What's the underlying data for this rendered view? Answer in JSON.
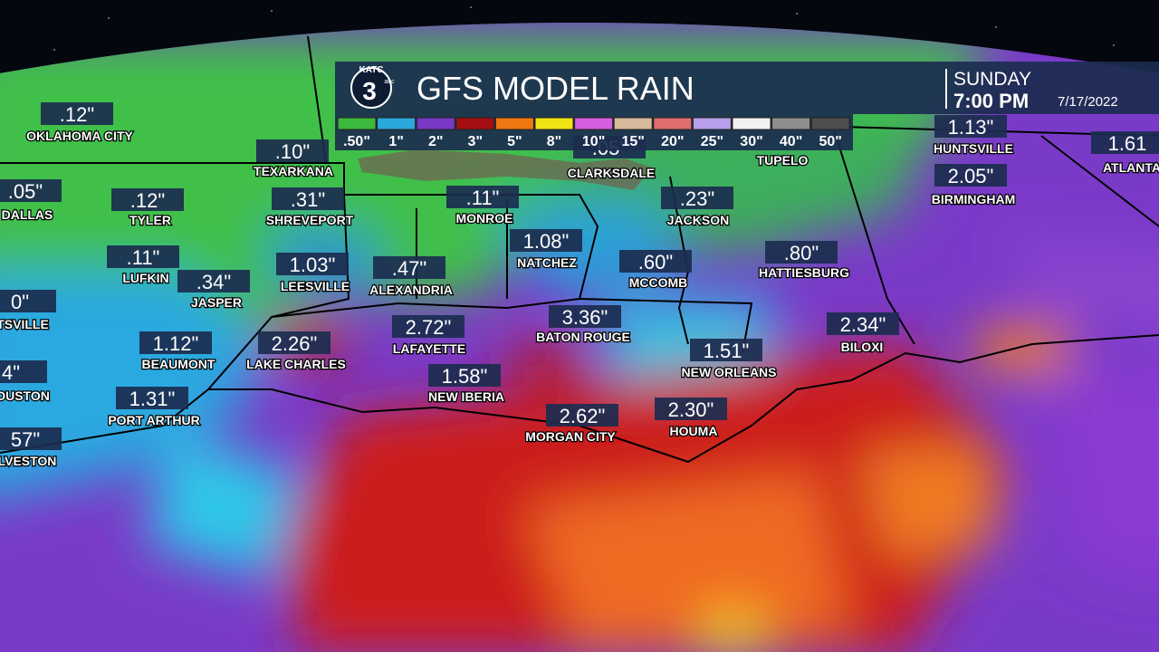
{
  "header": {
    "logo": {
      "station": "KATC",
      "channel": "3",
      "network": "abc"
    },
    "title": "GFS MODEL RAIN",
    "day": "SUNDAY",
    "time": "7:00 PM",
    "date": "7/17/2022"
  },
  "legend": [
    {
      "label": ".50\"",
      "color": "#3cb83c"
    },
    {
      "label": "1\"",
      "color": "#2aa8dc"
    },
    {
      "label": "2\"",
      "color": "#7a38c6"
    },
    {
      "label": "3\"",
      "color": "#a30f12"
    },
    {
      "label": "5\"",
      "color": "#f07812"
    },
    {
      "label": "8\"",
      "color": "#f2e414"
    },
    {
      "label": "10\"",
      "color": "#d45ee0"
    },
    {
      "label": "15\"",
      "color": "#d8bb9c"
    },
    {
      "label": "20\"",
      "color": "#e06c6c"
    },
    {
      "label": "25\"",
      "color": "#b8a0ea"
    },
    {
      "label": "30\"",
      "color": "#f2f2f2"
    },
    {
      "label": "40\"",
      "color": "#8e8e8e"
    },
    {
      "label": "50\"",
      "color": "#4e4e4e"
    }
  ],
  "cities": [
    {
      "name": "OKLAHOMA CITY",
      "amount": ".12\""
    },
    {
      "name": "DALLAS",
      "amount": ".05\""
    },
    {
      "name": "TYLER",
      "amount": ".12\""
    },
    {
      "name": "LUFKIN",
      "amount": ".11\""
    },
    {
      "name": "JASPER",
      "amount": ".34\""
    },
    {
      "name": "TSVILLE",
      "amount": "0\""
    },
    {
      "name": "BEAUMONT",
      "amount": "1.12\""
    },
    {
      "name": "OUSTON",
      "amount": "4\""
    },
    {
      "name": "PORT ARTHUR",
      "amount": "1.31\""
    },
    {
      "name": "LVESTON",
      "amount": "57\""
    },
    {
      "name": "TEXARKANA",
      "amount": ".10\""
    },
    {
      "name": "SHREVEPORT",
      "amount": ".31\""
    },
    {
      "name": "LEESVILLE",
      "amount": "1.03\""
    },
    {
      "name": "ALEXANDRIA",
      "amount": ".47\""
    },
    {
      "name": "LAKE CHARLES",
      "amount": "2.26\""
    },
    {
      "name": "LAFAYETTE",
      "amount": "2.72\""
    },
    {
      "name": "NEW IBERIA",
      "amount": "1.58\""
    },
    {
      "name": "MONROE",
      "amount": ".11\""
    },
    {
      "name": "NATCHEZ",
      "amount": "1.08\""
    },
    {
      "name": "BATON ROUGE",
      "amount": "3.36\""
    },
    {
      "name": "MORGAN CITY",
      "amount": "2.62\""
    },
    {
      "name": "CLARKSDALE",
      "amount": ".05\""
    },
    {
      "name": "JACKSON",
      "amount": ".23\""
    },
    {
      "name": "MCCOMB",
      "amount": ".60\""
    },
    {
      "name": "NEW ORLEANS",
      "amount": "1.51\""
    },
    {
      "name": "HOUMA",
      "amount": "2.30\""
    },
    {
      "name": "HATTIESBURG",
      "amount": ".80\""
    },
    {
      "name": "TUPELO"
    },
    {
      "name": "BILOXI",
      "amount": "2.34\""
    },
    {
      "name": "HUNTSVILLE",
      "amount": "1.13\""
    },
    {
      "name": "BIRMINGHAM",
      "amount": "2.05\""
    },
    {
      "name": "ATLANTA",
      "amount": "1.61"
    }
  ]
}
